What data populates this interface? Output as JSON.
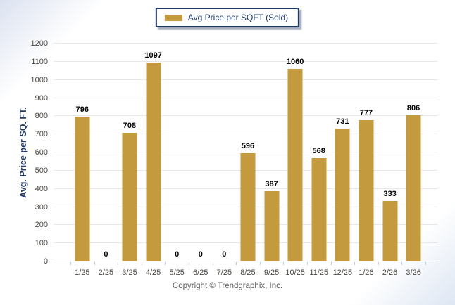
{
  "legend": {
    "label": "Avg Price per SQFT (Sold)",
    "swatch_color": "#C49A3E"
  },
  "chart_data": {
    "type": "bar",
    "title": "",
    "categories": [
      "1/25",
      "2/25",
      "3/25",
      "4/25",
      "5/25",
      "6/25",
      "7/25",
      "8/25",
      "9/25",
      "10/25",
      "11/25",
      "12/25",
      "1/26",
      "2/26",
      "3/26"
    ],
    "values": [
      796,
      0,
      708,
      1097,
      0,
      0,
      0,
      596,
      387,
      1060,
      568,
      731,
      777,
      333,
      806
    ],
    "series_name": "Avg Price per SQFT (Sold)",
    "xlabel": "",
    "ylabel": "Avg. Price per SQ. FT.",
    "ylim": [
      0,
      1200
    ],
    "ytick_step": 100,
    "bar_color": "#C49A3E",
    "grid": true,
    "value_labels": true,
    "legend_position": "top-center"
  },
  "footer": {
    "copyright": "Copyright © Trendgraphix, Inc."
  },
  "colors": {
    "accent_gold": "#C49A3E",
    "navy": "#1F3864",
    "tick_text": "#4A4640",
    "gridline": "#E8E8E8",
    "copyright_text": "#5A5A5A"
  }
}
